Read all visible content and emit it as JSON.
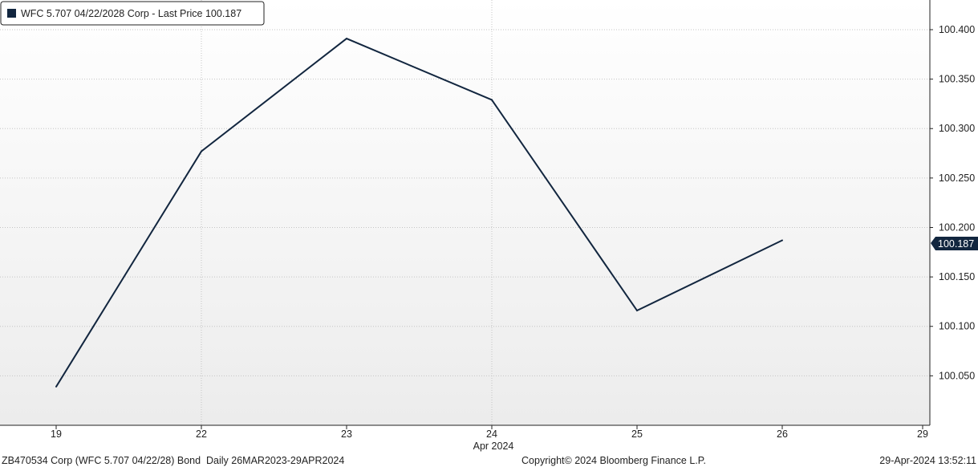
{
  "legend": {
    "text": "WFC 5.707 04/22/2028 Corp - Last Price 100.187",
    "swatch_color": "#12263f"
  },
  "last_price_tag": "100.187",
  "footer": {
    "left": "ZB470534 Corp (WFC 5.707 04/22/28) Bond  Daily 26MAR2023-29APR2024",
    "center": "Copyright© 2024 Bloomberg Finance L.P.",
    "right": "29-Apr-2024 13:52:11"
  },
  "chart_data": {
    "type": "line",
    "title": "",
    "xlabel": "Apr 2024",
    "ylabel": "",
    "x_ticks": [
      "19",
      "22",
      "23",
      "24",
      "25",
      "26",
      "29"
    ],
    "y_ticks": [
      "100.050",
      "100.100",
      "100.150",
      "100.200",
      "100.250",
      "100.300",
      "100.350",
      "100.400"
    ],
    "ylim": [
      100.0,
      100.43
    ],
    "grid": true,
    "legend_position": "top-left",
    "y_axis_position": "right",
    "series": [
      {
        "name": "WFC 5.707 04/22/2028 Corp - Last Price",
        "color": "#12263f",
        "x": [
          "19",
          "22",
          "23",
          "24",
          "25",
          "26"
        ],
        "values": [
          100.039,
          100.277,
          100.391,
          100.329,
          100.116,
          100.187
        ]
      }
    ]
  }
}
